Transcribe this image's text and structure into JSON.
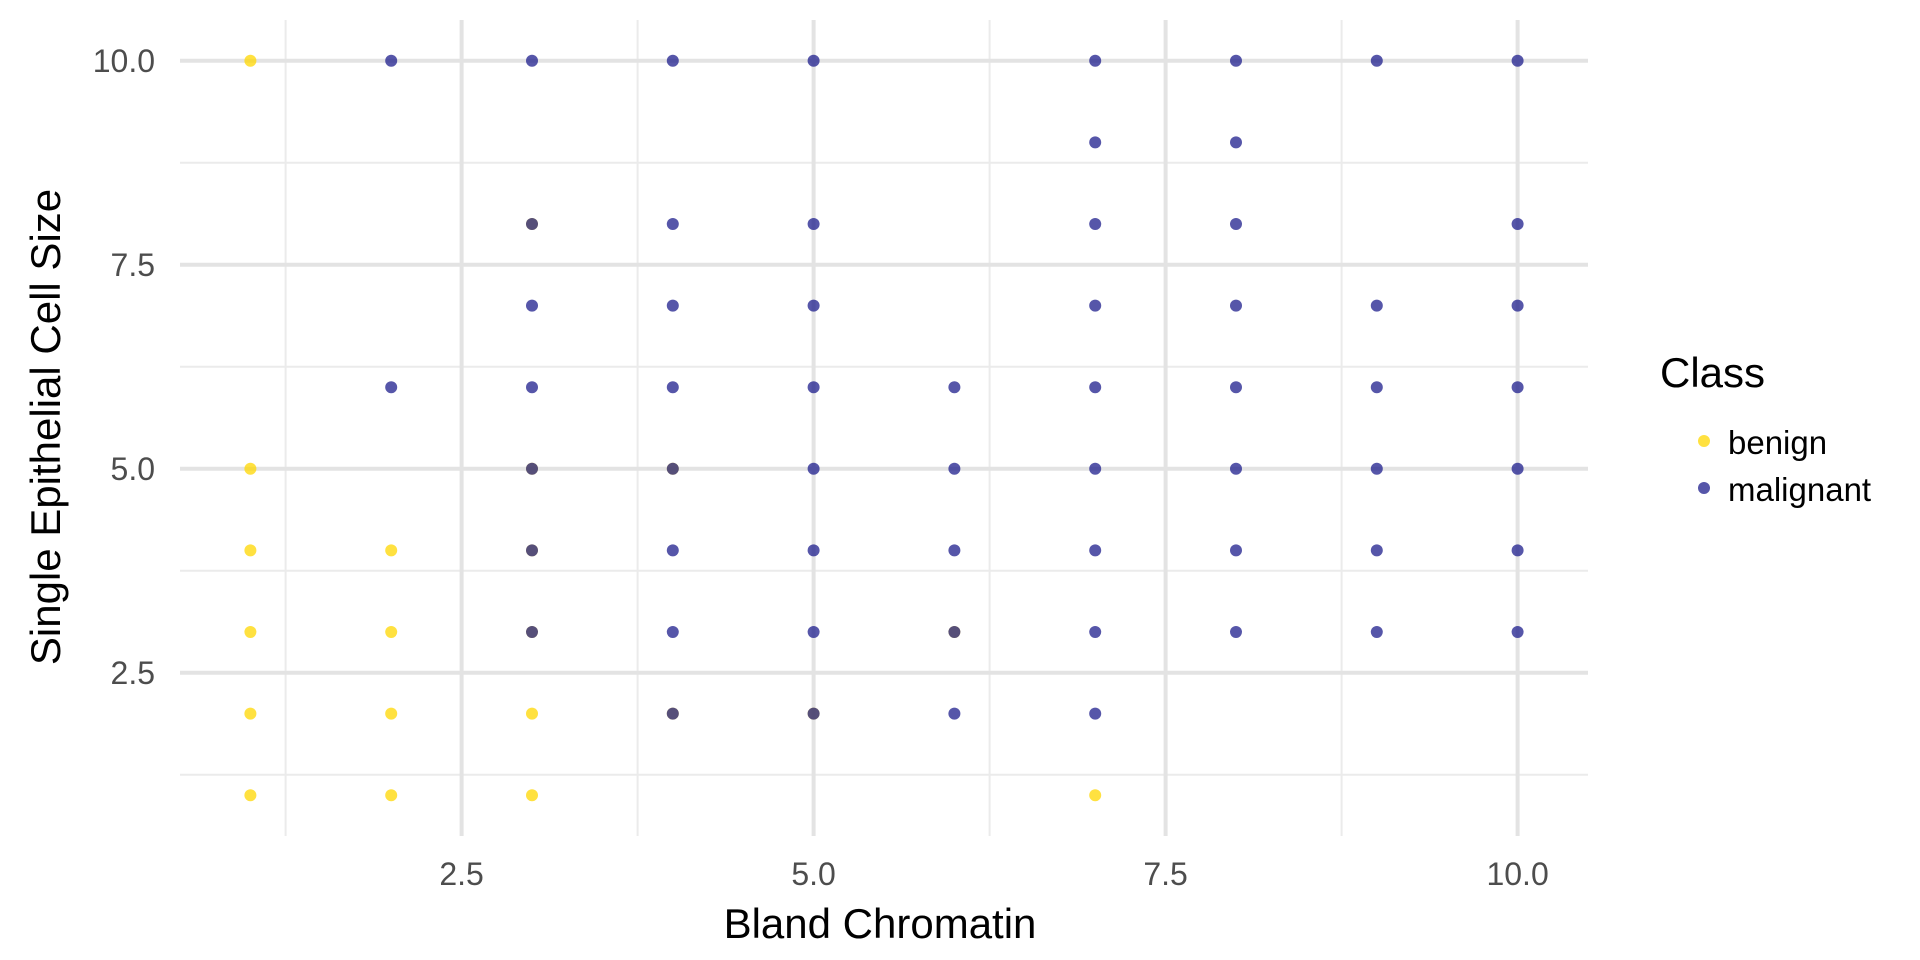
{
  "chart_data": {
    "type": "scatter",
    "xlabel": "Bland Chromatin",
    "ylabel": "Single Epithelial Cell Size",
    "xlim": [
      0.5,
      10.5
    ],
    "ylim": [
      0.5,
      10.5
    ],
    "x_ticks": [
      2.5,
      5.0,
      7.5,
      10.0
    ],
    "x_tick_labels": [
      "2.5",
      "5.0",
      "7.5",
      "10.0"
    ],
    "y_ticks": [
      2.5,
      5.0,
      7.5,
      10.0
    ],
    "y_tick_labels": [
      "2.5",
      "5.0",
      "7.5",
      "10.0"
    ],
    "grid": true,
    "legend": {
      "title": "Class",
      "position": "right",
      "entries": [
        {
          "label": "benign",
          "color": "#FFD700"
        },
        {
          "label": "malignant",
          "color": "#1E1E8C"
        }
      ]
    },
    "series": [
      {
        "name": "benign",
        "color": "#FFD700",
        "points": [
          [
            1,
            10
          ],
          [
            1,
            5
          ],
          [
            1,
            4
          ],
          [
            1,
            3
          ],
          [
            1,
            2
          ],
          [
            1,
            1
          ],
          [
            2,
            4
          ],
          [
            2,
            3
          ],
          [
            2,
            2
          ],
          [
            2,
            1
          ],
          [
            3,
            8
          ],
          [
            3,
            5
          ],
          [
            3,
            4
          ],
          [
            3,
            3
          ],
          [
            3,
            2
          ],
          [
            3,
            1
          ],
          [
            4,
            5
          ],
          [
            4,
            2
          ],
          [
            5,
            2
          ],
          [
            6,
            3
          ],
          [
            7,
            1
          ]
        ]
      },
      {
        "name": "malignant",
        "color": "#1E1E8C",
        "points": [
          [
            2,
            10
          ],
          [
            2,
            6
          ],
          [
            3,
            10
          ],
          [
            3,
            8
          ],
          [
            3,
            7
          ],
          [
            3,
            6
          ],
          [
            3,
            5
          ],
          [
            3,
            4
          ],
          [
            3,
            3
          ],
          [
            4,
            10
          ],
          [
            4,
            8
          ],
          [
            4,
            7
          ],
          [
            4,
            6
          ],
          [
            4,
            5
          ],
          [
            4,
            4
          ],
          [
            4,
            3
          ],
          [
            4,
            2
          ],
          [
            5,
            10
          ],
          [
            5,
            8
          ],
          [
            5,
            7
          ],
          [
            5,
            6
          ],
          [
            5,
            5
          ],
          [
            5,
            4
          ],
          [
            5,
            3
          ],
          [
            5,
            2
          ],
          [
            6,
            6
          ],
          [
            6,
            5
          ],
          [
            6,
            4
          ],
          [
            6,
            3
          ],
          [
            6,
            2
          ],
          [
            7,
            10
          ],
          [
            7,
            9
          ],
          [
            7,
            8
          ],
          [
            7,
            7
          ],
          [
            7,
            6
          ],
          [
            7,
            5
          ],
          [
            7,
            4
          ],
          [
            7,
            3
          ],
          [
            7,
            2
          ],
          [
            8,
            10
          ],
          [
            8,
            9
          ],
          [
            8,
            8
          ],
          [
            8,
            7
          ],
          [
            8,
            6
          ],
          [
            8,
            5
          ],
          [
            8,
            4
          ],
          [
            8,
            3
          ],
          [
            9,
            10
          ],
          [
            9,
            7
          ],
          [
            9,
            6
          ],
          [
            9,
            5
          ],
          [
            9,
            4
          ],
          [
            9,
            3
          ],
          [
            10,
            10
          ],
          [
            10,
            8
          ],
          [
            10,
            7
          ],
          [
            10,
            6
          ],
          [
            10,
            5
          ],
          [
            10,
            4
          ],
          [
            10,
            3
          ]
        ]
      }
    ]
  }
}
